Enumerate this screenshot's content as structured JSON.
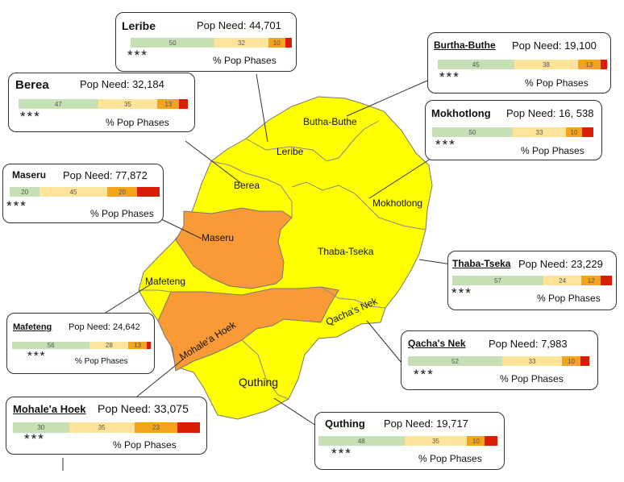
{
  "colors": {
    "stressed": "#ffff00",
    "crisis": "#f99a36",
    "phase1": "#c6dfb4",
    "phase2": "#fde49a",
    "phase3": "#f4a31c",
    "phase4": "#d81e05"
  },
  "map_labels": {
    "butha_buthe": "Butha-Buthe",
    "leribe": "Leribe",
    "berea": "Berea",
    "mokhotlong": "Mokhotlong",
    "maseru": "Maseru",
    "thaba_tseka": "Thaba-Tseka",
    "mafeteng": "Mafeteng",
    "qachas_nek": "Qacha's Nek",
    "mohales_hoek": "Mohale'a Hoek",
    "quthing": "Quthing"
  },
  "districts": [
    {
      "key": "leribe",
      "name": "Leribe",
      "need_label": "Pop Need:",
      "need": "44,701",
      "stars": "***",
      "phases_label": "% Pop Phases",
      "phases": [
        50,
        32,
        10,
        4
      ]
    },
    {
      "key": "butha_buthe",
      "name": "Burtha-Buthe",
      "need_label": "Pop Need:",
      "need": "19,100",
      "stars": "***",
      "phases_label": "% Pop Phases",
      "phases": [
        45,
        38,
        13,
        4
      ]
    },
    {
      "key": "berea",
      "name": "Berea",
      "need_label": "Pop Need:",
      "need": "32,184",
      "stars": "***",
      "phases_label": "% Pop Phases",
      "phases": [
        47,
        35,
        13,
        5
      ]
    },
    {
      "key": "mokhotlong",
      "name": "Mokhotlong",
      "need_label": "Pop Need:",
      "need": "16, 538",
      "stars": "***",
      "phases_label": "% Pop Phases",
      "phases": [
        50,
        33,
        10,
        7
      ]
    },
    {
      "key": "maseru",
      "name": "Maseru",
      "need_label": "Pop Need:",
      "need": "77,872",
      "stars": "***",
      "phases_label": "% Pop Phases",
      "phases": [
        20,
        45,
        20,
        15
      ]
    },
    {
      "key": "thaba_tseka",
      "name": "Thaba-Tseka",
      "need_label": "Pop Need:",
      "need": "23,229",
      "stars": "***",
      "phases_label": "% Pop Phases",
      "phases": [
        57,
        24,
        12,
        7
      ]
    },
    {
      "key": "mafeteng",
      "name": "Mafeteng",
      "need_label": "Pop Need:",
      "need": "24,642",
      "stars": "***",
      "phases_label": "% Pop Phases",
      "phases": [
        56,
        28,
        13,
        3
      ]
    },
    {
      "key": "qachas_nek",
      "name": "Qacha's Nek",
      "need_label": "Pop Need:",
      "need": "7,983",
      "stars": "***",
      "phases_label": "% Pop Phases",
      "phases": [
        52,
        33,
        10,
        5
      ]
    },
    {
      "key": "mohales_hoek",
      "name": "Mohale'a Hoek",
      "need_label": "Pop Need:",
      "need": "33,075",
      "stars": "***",
      "phases_label": "% Pop Phases",
      "phases": [
        30,
        35,
        23,
        12
      ]
    },
    {
      "key": "quthing",
      "name": "Quthing",
      "need_label": "Pop Need:",
      "need": "19,717",
      "stars": "***",
      "phases_label": "% Pop Phases",
      "phases": [
        48,
        35,
        10,
        7
      ]
    }
  ]
}
